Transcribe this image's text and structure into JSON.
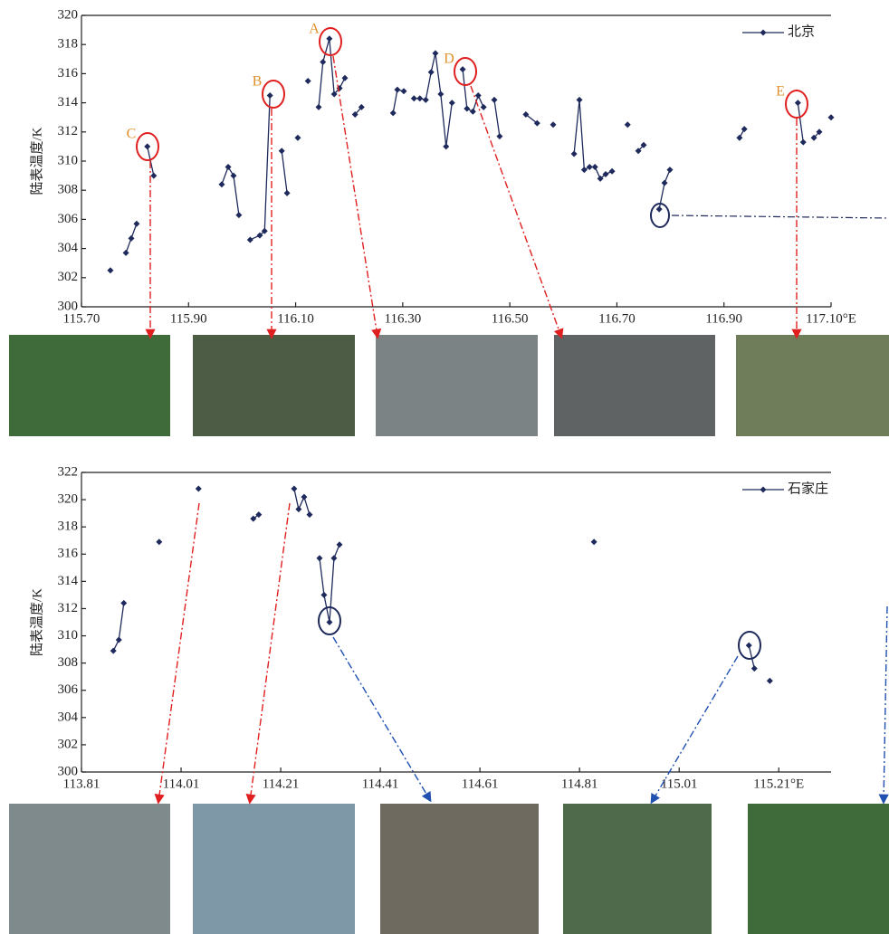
{
  "chart_data": [
    {
      "type": "line",
      "ylabel": "陆表温度/K",
      "annotations": [
        "C",
        "B",
        "A",
        "D",
        "E"
      ],
      "xlim": [
        115.7,
        117.1
      ],
      "ylim": [
        300,
        320
      ],
      "xticks": [
        {
          "value": 115.7,
          "label": "115.70"
        },
        {
          "value": 115.9,
          "label": "115.90"
        },
        {
          "value": 116.1,
          "label": "116.10"
        },
        {
          "value": 116.3,
          "label": "116.30"
        },
        {
          "value": 116.5,
          "label": "116.50"
        },
        {
          "value": 116.7,
          "label": "116.70"
        },
        {
          "value": 116.9,
          "label": "116.90"
        },
        {
          "value": 117.1,
          "label": "117.10°E"
        }
      ],
      "yticks": [
        300,
        302,
        304,
        306,
        308,
        310,
        312,
        314,
        316,
        318,
        320
      ],
      "series": [
        {
          "name": "北京",
          "color": "#1f2a5c",
          "x": [
            115.754,
            null,
            115.783,
            115.793,
            115.803,
            null,
            115.823,
            115.835,
            null,
            115.962,
            115.974,
            115.984,
            115.994,
            null,
            116.015,
            116.033,
            116.042,
            116.052,
            null,
            116.074,
            116.084,
            null,
            116.104,
            null,
            116.123,
            null,
            116.143,
            116.151,
            116.163,
            116.172,
            116.182,
            116.192,
            null,
            116.211,
            116.223,
            null,
            116.282,
            116.29,
            116.302,
            null,
            116.321,
            116.332,
            116.343,
            116.353,
            116.361,
            116.371,
            116.381,
            116.392,
            null,
            116.412,
            116.42,
            116.431,
            116.441,
            116.451,
            null,
            116.471,
            116.481,
            null,
            116.53,
            116.551,
            null,
            116.581,
            null,
            116.62,
            116.63,
            116.639,
            116.649,
            116.659,
            116.669,
            116.679,
            116.691,
            null,
            116.72,
            null,
            116.74,
            116.75,
            null,
            116.779,
            116.789,
            116.799,
            null,
            116.929,
            116.938,
            null,
            117.038,
            117.048,
            null,
            117.068,
            117.078,
            null,
            117.1
          ],
          "values": [
            302.5,
            null,
            303.7,
            304.7,
            305.7,
            null,
            311.0,
            309.0,
            null,
            308.4,
            309.6,
            309.0,
            306.3,
            null,
            304.6,
            304.9,
            305.2,
            314.5,
            null,
            310.7,
            307.8,
            null,
            311.6,
            null,
            315.5,
            null,
            313.7,
            316.8,
            318.4,
            314.6,
            315.0,
            315.7,
            null,
            313.2,
            313.7,
            null,
            313.3,
            314.9,
            314.8,
            null,
            314.3,
            314.3,
            314.2,
            316.1,
            317.4,
            314.6,
            311.0,
            314.0,
            null,
            316.3,
            313.6,
            313.4,
            314.5,
            313.7,
            null,
            314.2,
            311.7,
            null,
            313.2,
            312.6,
            null,
            312.5,
            null,
            310.5,
            314.2,
            309.4,
            309.6,
            309.6,
            308.8,
            309.1,
            309.3,
            null,
            312.5,
            null,
            310.7,
            311.1,
            null,
            306.7,
            308.5,
            309.4,
            null,
            311.6,
            312.2,
            null,
            314.0,
            311.3,
            null,
            311.6,
            312.0,
            null,
            313.0
          ]
        }
      ]
    },
    {
      "type": "line",
      "ylabel": "陆表温度/K",
      "xlim": [
        113.81,
        115.315
      ],
      "ylim": [
        300,
        322
      ],
      "xticks": [
        113.81,
        114.01,
        114.21,
        114.41,
        114.61,
        114.81,
        115.01,
        {
          "value": 115.21,
          "label": "115.21°E"
        }
      ],
      "yticks": [
        300,
        302,
        304,
        306,
        308,
        310,
        312,
        314,
        316,
        318,
        320,
        322
      ],
      "series": [
        {
          "name": "石家庄",
          "color": "#1f2a5c",
          "x": [
            113.874,
            113.885,
            113.895,
            null,
            113.966,
            null,
            114.045,
            null,
            114.155,
            114.166,
            null,
            114.237,
            114.246,
            114.257,
            114.268,
            null,
            114.288,
            114.297,
            114.308,
            114.317,
            114.328,
            null,
            114.839,
            null,
            115.15,
            115.161,
            null,
            115.192
          ],
          "values": [
            308.9,
            309.7,
            312.4,
            null,
            316.9,
            null,
            320.8,
            null,
            318.6,
            318.9,
            null,
            320.8,
            319.3,
            320.2,
            318.9,
            null,
            315.7,
            313.0,
            311.0,
            315.7,
            316.7,
            null,
            316.9,
            null,
            309.3,
            307.6,
            null,
            306.7
          ]
        }
      ]
    }
  ]
}
